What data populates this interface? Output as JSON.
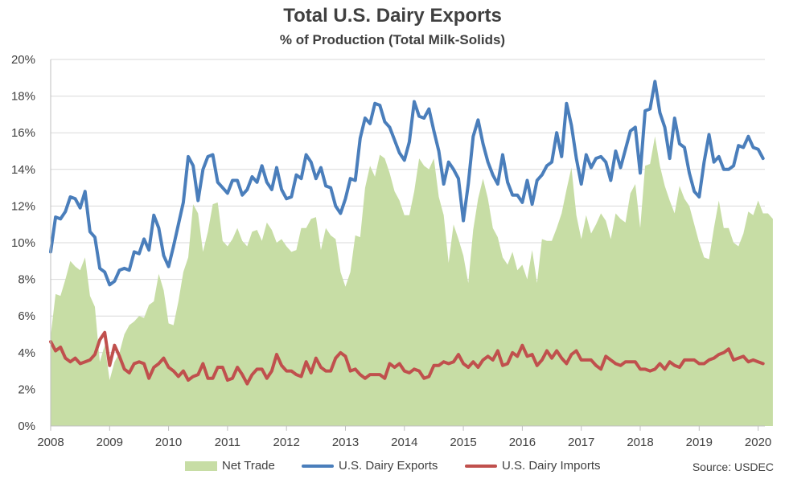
{
  "title": "Total U.S. Dairy Exports",
  "subtitle": "% of Production  (Total Milk-Solids)",
  "source": "Source: USDEC",
  "colors": {
    "net_trade": "#c7dda5",
    "exports": "#4a7ebb",
    "imports": "#c0504d",
    "grid": "#d9d9d9",
    "axis": "#bfbfbf"
  },
  "chart_data": {
    "type": "line",
    "title": "Total U.S. Dairy Exports",
    "subtitle": "% of Production  (Total Milk-Solids)",
    "xlabel": "",
    "ylabel": "",
    "ylim": [
      0,
      20
    ],
    "y_ticks": [
      "0%",
      "2%",
      "4%",
      "6%",
      "8%",
      "10%",
      "12%",
      "14%",
      "16%",
      "18%",
      "20%"
    ],
    "x_ticks": [
      "2008",
      "2009",
      "2010",
      "2011",
      "2012",
      "2013",
      "2014",
      "2015",
      "2016",
      "2017",
      "2018",
      "2019",
      "2020"
    ],
    "x_start": "2008-01",
    "x_end": "2020-02",
    "grid": true,
    "legend_position": "bottom",
    "series": [
      {
        "name": "Net Trade",
        "kind": "area",
        "color": "#c7dda5",
        "values": [
          4.9,
          7.2,
          7.1,
          8.0,
          9.0,
          8.7,
          8.5,
          9.2,
          7.1,
          6.5,
          3.5,
          4.4,
          2.5,
          3.5,
          4.0,
          5.0,
          5.5,
          5.7,
          6.0,
          5.9,
          6.6,
          6.8,
          8.3,
          7.4,
          5.6,
          5.5,
          6.8,
          8.4,
          9.2,
          12.1,
          11.6,
          9.5,
          10.6,
          12.1,
          12.2,
          10.1,
          9.8,
          10.2,
          10.8,
          10.1,
          9.8,
          10.6,
          10.7,
          10.1,
          11.1,
          10.7,
          10.0,
          10.2,
          9.8,
          9.5,
          9.6,
          10.8,
          10.8,
          11.3,
          11.4,
          9.6,
          10.8,
          10.4,
          10.2,
          8.4,
          7.6,
          8.4,
          10.4,
          10.3,
          13.0,
          14.2,
          13.6,
          14.8,
          14.6,
          13.8,
          12.8,
          12.3,
          11.5,
          11.5,
          12.8,
          14.6,
          14.2,
          14.0,
          14.6,
          12.5,
          11.5,
          8.9,
          11.0,
          10.2,
          9.3,
          7.8,
          10.7,
          12.4,
          13.5,
          12.4,
          10.8,
          10.3,
          9.2,
          8.8,
          9.5,
          8.5,
          8.8,
          8.0,
          9.6,
          7.8,
          10.2,
          10.1,
          10.1,
          10.8,
          11.6,
          12.9,
          14.1,
          11.5,
          10.2,
          11.5,
          10.5,
          11.0,
          11.6,
          11.2,
          10.2,
          11.6,
          11.3,
          11.1,
          12.7,
          13.2,
          10.8,
          14.2,
          14.3,
          15.8,
          14.2,
          13.1,
          12.3,
          11.6,
          13.1,
          12.4,
          12.0,
          11.0,
          10.0,
          9.2,
          9.1,
          10.8,
          12.3,
          10.8,
          10.8,
          10.0,
          9.8,
          10.5,
          11.7,
          11.5,
          12.3,
          11.6,
          11.6,
          11.3
        ]
      },
      {
        "name": "U.S. Dairy Exports",
        "kind": "line",
        "color": "#4a7ebb",
        "values": [
          9.5,
          11.4,
          11.3,
          11.7,
          12.5,
          12.4,
          11.9,
          12.8,
          10.6,
          10.3,
          8.6,
          8.4,
          7.7,
          7.9,
          8.5,
          8.6,
          8.5,
          9.5,
          9.4,
          10.2,
          9.6,
          11.5,
          10.8,
          9.3,
          8.7,
          9.8,
          11.0,
          12.2,
          14.7,
          14.2,
          12.3,
          14.0,
          14.7,
          14.8,
          13.3,
          13.0,
          12.7,
          13.4,
          13.4,
          12.6,
          12.9,
          13.6,
          13.3,
          14.2,
          13.3,
          12.9,
          14.1,
          12.9,
          12.4,
          12.5,
          13.7,
          13.5,
          14.8,
          14.4,
          13.5,
          14.1,
          13.1,
          13.0,
          12.0,
          11.6,
          12.4,
          13.5,
          13.4,
          15.7,
          16.8,
          16.5,
          17.6,
          17.5,
          16.6,
          16.3,
          15.6,
          14.9,
          14.5,
          15.5,
          17.7,
          16.9,
          16.8,
          17.3,
          16.1,
          15.0,
          13.2,
          14.4,
          14.0,
          13.5,
          11.2,
          13.2,
          15.8,
          16.7,
          15.4,
          14.4,
          13.7,
          13.2,
          14.8,
          13.3,
          12.6,
          12.6,
          12.2,
          13.4,
          12.1,
          13.4,
          13.7,
          14.2,
          14.4,
          16.0,
          14.7,
          17.6,
          16.4,
          14.6,
          13.2,
          14.8,
          14.1,
          14.6,
          14.7,
          14.4,
          13.4,
          15.0,
          14.1,
          15.1,
          16.1,
          16.3,
          13.8,
          17.2,
          17.3,
          18.8,
          17.1,
          16.3,
          14.6,
          16.8,
          15.4,
          15.2,
          13.8,
          12.8,
          12.5,
          14.4,
          15.9,
          14.4,
          14.7,
          14.0,
          14.0,
          14.2,
          15.3,
          15.2,
          15.8,
          15.2,
          15.1,
          14.6
        ]
      },
      {
        "name": "U.S. Dairy Imports",
        "kind": "line",
        "color": "#c0504d",
        "values": [
          4.6,
          4.1,
          4.3,
          3.7,
          3.5,
          3.7,
          3.4,
          3.5,
          3.6,
          3.9,
          4.7,
          5.1,
          3.3,
          4.4,
          3.8,
          3.1,
          2.9,
          3.4,
          3.5,
          3.4,
          2.6,
          3.2,
          3.4,
          3.7,
          3.2,
          3.0,
          2.7,
          3.0,
          2.5,
          2.7,
          2.8,
          3.4,
          2.6,
          2.6,
          3.2,
          3.2,
          2.5,
          2.6,
          3.2,
          2.8,
          2.3,
          2.8,
          3.1,
          3.1,
          2.6,
          3.0,
          3.9,
          3.3,
          3.0,
          3.0,
          2.8,
          2.7,
          3.5,
          2.9,
          3.7,
          3.2,
          3.0,
          3.0,
          3.7,
          4.0,
          3.8,
          3.0,
          3.1,
          2.8,
          2.6,
          2.8,
          2.8,
          2.8,
          2.6,
          3.4,
          3.2,
          3.4,
          3.0,
          2.9,
          3.1,
          3.0,
          2.6,
          2.7,
          3.3,
          3.3,
          3.5,
          3.4,
          3.5,
          3.9,
          3.4,
          3.2,
          3.5,
          3.2,
          3.6,
          3.8,
          3.6,
          4.1,
          3.3,
          3.4,
          4.0,
          3.8,
          4.4,
          3.8,
          3.9,
          3.3,
          3.6,
          4.1,
          3.7,
          4.1,
          3.7,
          3.4,
          3.9,
          4.1,
          3.6,
          3.6,
          3.6,
          3.3,
          3.1,
          3.8,
          3.6,
          3.4,
          3.3,
          3.5,
          3.5,
          3.5,
          3.1,
          3.1,
          3.0,
          3.1,
          3.4,
          3.1,
          3.5,
          3.3,
          3.2,
          3.6,
          3.6,
          3.6,
          3.4,
          3.4,
          3.6,
          3.7,
          3.9,
          4.0,
          4.2,
          3.6,
          3.7,
          3.8,
          3.5,
          3.6,
          3.5,
          3.4
        ]
      }
    ]
  }
}
